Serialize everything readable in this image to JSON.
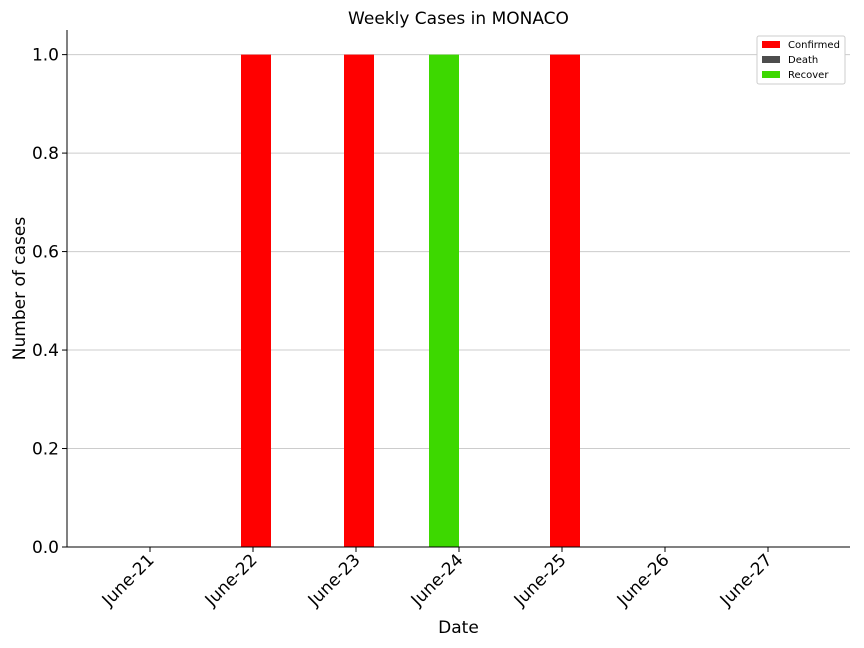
{
  "chart_data": {
    "type": "bar",
    "title": "Weekly Cases in MONACO",
    "xlabel": "Date",
    "ylabel": "Number of cases",
    "categories": [
      "June-21",
      "June-22",
      "June-23",
      "June-24",
      "June-25",
      "June-26",
      "June-27"
    ],
    "series": [
      {
        "name": "Confirmed",
        "color": "#ff0000",
        "values": [
          0,
          1,
          1,
          0,
          1,
          0,
          0
        ]
      },
      {
        "name": "Death",
        "color": "#4d4d4d",
        "values": [
          0,
          0,
          0,
          0,
          0,
          0,
          0
        ]
      },
      {
        "name": "Recover",
        "color": "#3dd800",
        "values": [
          0,
          0,
          0,
          1,
          0,
          0,
          0
        ]
      }
    ],
    "ylim": [
      0,
      1.05
    ],
    "yticks": [
      "0.0",
      "0.2",
      "0.4",
      "0.6",
      "0.8",
      "1.0"
    ],
    "ytick_values": [
      0,
      0.2,
      0.4,
      0.6,
      0.8,
      1.0
    ],
    "grid": "y",
    "legend_position": "top-right"
  }
}
